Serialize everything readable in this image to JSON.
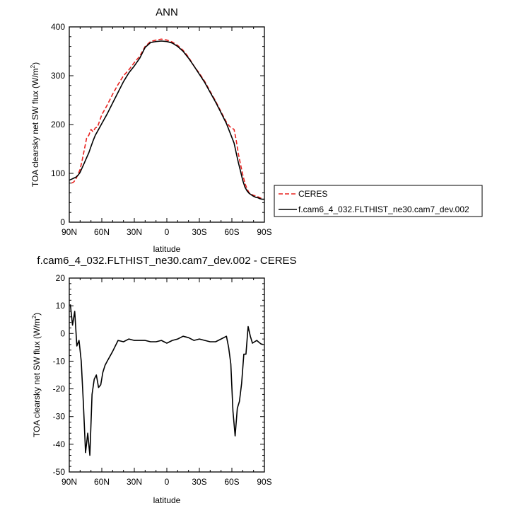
{
  "chart_data": [
    {
      "type": "line",
      "title": "ANN",
      "xlabel": "latitude",
      "ylabel_main": "TOA clearsky net SW flux (W/m",
      "ylabel_sup": "2",
      "ylabel_tail": ")",
      "xlim": [
        90,
        -90
      ],
      "ylim": [
        0,
        400
      ],
      "x_ticks": [
        90,
        60,
        30,
        0,
        -30,
        -60,
        -90
      ],
      "x_tick_labels": [
        "90N",
        "60N",
        "30N",
        "0",
        "30S",
        "60S",
        "90S"
      ],
      "y_ticks": [
        0,
        100,
        200,
        300,
        400
      ],
      "y_tick_labels": [
        "0",
        "100",
        "200",
        "300",
        "400"
      ],
      "legend": "right",
      "series": [
        {
          "name": "CERES",
          "color": "#e8221f",
          "dash": "dashed",
          "x": [
            88,
            86,
            84,
            82,
            80,
            78,
            76,
            74,
            72,
            70,
            68,
            66,
            64,
            60,
            55,
            50,
            45,
            40,
            35,
            30,
            25,
            20,
            15,
            10,
            5,
            0,
            -5,
            -10,
            -15,
            -20,
            -25,
            -30,
            -35,
            -40,
            -45,
            -50,
            -55,
            -58,
            -62,
            -64,
            -66,
            -68,
            -70,
            -72,
            -74,
            -76,
            -78,
            -80,
            -82,
            -84,
            -86,
            -88
          ],
          "y": [
            80,
            82,
            88,
            98,
            108,
            128,
            150,
            172,
            178,
            190,
            185,
            193,
            195,
            220,
            240,
            262,
            282,
            300,
            312,
            327,
            340,
            360,
            370,
            373,
            375,
            373,
            369,
            362,
            352,
            338,
            320,
            305,
            288,
            268,
            248,
            226,
            205,
            196,
            190,
            168,
            140,
            118,
            98,
            80,
            68,
            60,
            57,
            55,
            54,
            52,
            50,
            48
          ]
        },
        {
          "name": "f.cam6_4_032.FLTHIST_ne30.cam7_dev.002",
          "color": "#000000",
          "dash": "solid",
          "x": [
            90,
            88,
            86,
            84,
            82,
            80,
            78,
            76,
            74,
            72,
            70,
            68,
            66,
            64,
            60,
            55,
            50,
            45,
            40,
            35,
            30,
            25,
            20,
            15,
            10,
            5,
            0,
            -5,
            -10,
            -15,
            -20,
            -25,
            -30,
            -35,
            -40,
            -45,
            -50,
            -55,
            -58,
            -62,
            -64,
            -66,
            -68,
            -70,
            -72,
            -74,
            -76,
            -78,
            -80,
            -82,
            -84,
            -86,
            -88,
            -90
          ],
          "y": [
            86,
            88,
            90,
            92,
            96,
            102,
            112,
            122,
            132,
            142,
            155,
            167,
            178,
            186,
            202,
            222,
            244,
            266,
            288,
            306,
            320,
            336,
            358,
            368,
            370,
            371,
            370,
            367,
            360,
            350,
            336,
            320,
            303,
            286,
            266,
            246,
            224,
            202,
            185,
            162,
            142,
            122,
            104,
            86,
            72,
            64,
            59,
            56,
            53,
            51,
            50,
            48,
            47,
            47
          ]
        }
      ]
    },
    {
      "type": "line",
      "title": "f.cam6_4_032.FLTHIST_ne30.cam7_dev.002 - CERES",
      "xlabel": "latitude",
      "ylabel_main": "TOA clearsky net SW flux (W/m",
      "ylabel_sup": "2",
      "ylabel_tail": ")",
      "xlim": [
        90,
        -90
      ],
      "ylim": [
        -50,
        20
      ],
      "x_ticks": [
        90,
        60,
        30,
        0,
        -30,
        -60,
        -90
      ],
      "x_tick_labels": [
        "90N",
        "60N",
        "30N",
        "0",
        "30S",
        "60S",
        "90S"
      ],
      "y_ticks": [
        -50,
        -40,
        -30,
        -20,
        -10,
        0,
        10,
        20
      ],
      "y_tick_labels": [
        "-50",
        "-40",
        "-30",
        "-20",
        "-10",
        "0",
        "10",
        "20"
      ],
      "series": [
        {
          "name": "",
          "color": "#000000",
          "dash": "solid",
          "x": [
            89,
            87,
            85,
            83,
            81,
            79,
            77,
            75,
            73,
            71,
            69,
            67,
            65,
            63,
            61,
            59,
            57,
            55,
            50,
            45,
            40,
            35,
            30,
            25,
            20,
            15,
            10,
            5,
            0,
            -5,
            -10,
            -15,
            -20,
            -25,
            -30,
            -35,
            -40,
            -45,
            -50,
            -55,
            -57,
            -59,
            -61,
            -63,
            -65,
            -67,
            -69,
            -71,
            -73,
            -75,
            -77,
            -79,
            -81,
            -83,
            -85,
            -87,
            -89
          ],
          "y": [
            10.5,
            3,
            8,
            -4.5,
            -2.5,
            -10,
            -25,
            -43,
            -36,
            -44,
            -22,
            -16.5,
            -15,
            -19.5,
            -18.5,
            -14,
            -11.5,
            -10,
            -6.5,
            -2.5,
            -3,
            -2,
            -2.5,
            -2.5,
            -2.5,
            -3,
            -3,
            -2.5,
            -3.5,
            -2.5,
            -2,
            -1,
            -1.5,
            -2.5,
            -2,
            -2.5,
            -3,
            -3,
            -2,
            -1,
            -5,
            -11,
            -28,
            -37,
            -27,
            -24.5,
            -18,
            -7.5,
            -7.5,
            2.5,
            -1,
            -3.5,
            -3,
            -2.5,
            -3.2,
            -3.8,
            -4
          ]
        }
      ]
    }
  ]
}
